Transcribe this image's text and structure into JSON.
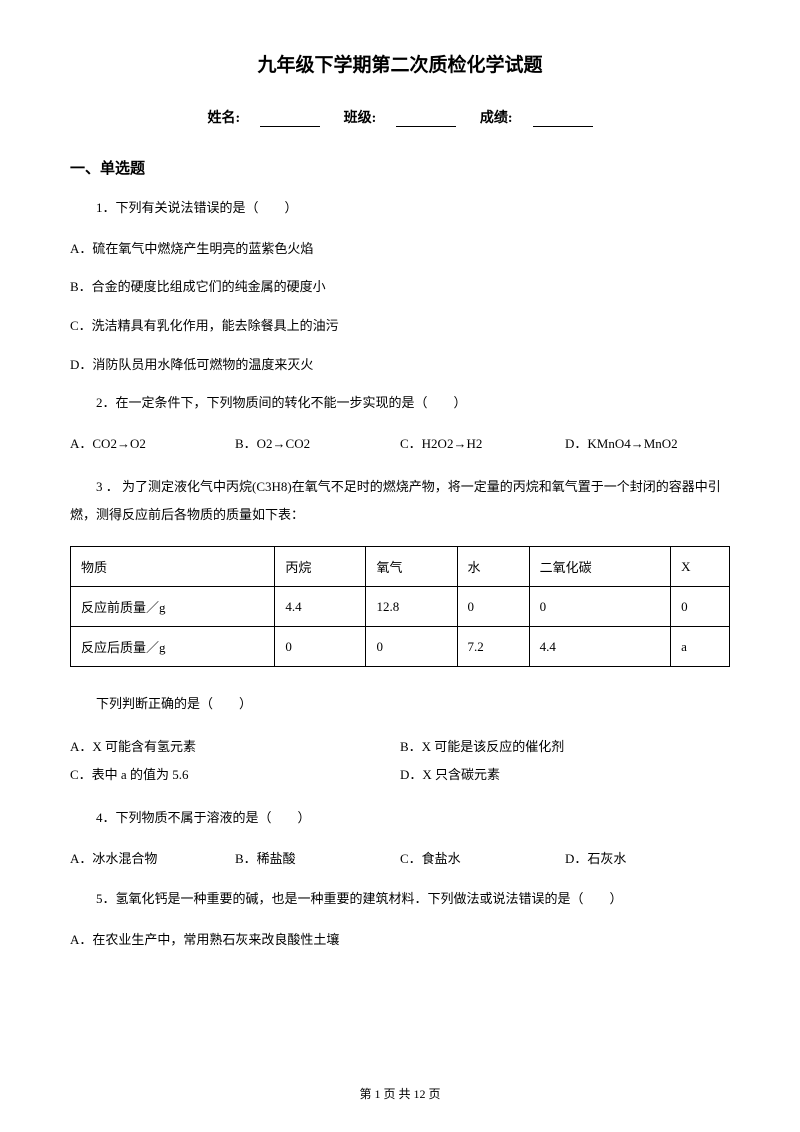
{
  "title": "九年级下学期第二次质检化学试题",
  "info": {
    "name_label": "姓名:",
    "class_label": "班级:",
    "score_label": "成绩:"
  },
  "section1": {
    "header": "一、单选题",
    "q1": {
      "text": "1．下列有关说法错误的是（　　）",
      "a": "A．硫在氧气中燃烧产生明亮的蓝紫色火焰",
      "b": "B．合金的硬度比组成它们的纯金属的硬度小",
      "c": "C．洗洁精具有乳化作用，能去除餐具上的油污",
      "d": "D．消防队员用水降低可燃物的温度来灭火"
    },
    "q2": {
      "text": "2．在一定条件下，下列物质间的转化不能一步实现的是（　　）",
      "a": "A．CO2→O2",
      "b": "B．O2→CO2",
      "c": "C．H2O2→H2",
      "d": "D．KMnO4→MnO2"
    },
    "q3": {
      "text": "3 ． 为了测定液化气中丙烷(C3H8)在氧气不足时的燃烧产物，将一定量的丙烷和氧气置于一个封闭的容器中引燃，测得反应前后各物质的质量如下表：",
      "table": {
        "headers": [
          "物质",
          "丙烷",
          "氧气",
          "水",
          "二氧化碳",
          "X"
        ],
        "row1": [
          "反应前质量／g",
          "4.4",
          "12.8",
          "0",
          "0",
          "0"
        ],
        "row2": [
          "反应后质量／g",
          "0",
          "0",
          "7.2",
          "4.4",
          "a"
        ]
      },
      "subtext": "下列判断正确的是（　　）",
      "a": "A．X 可能含有氢元素",
      "b": "B．X 可能是该反应的催化剂",
      "c": "C．表中 a 的值为 5.6",
      "d": "D．X 只含碳元素"
    },
    "q4": {
      "text": "4．下列物质不属于溶液的是（　　）",
      "a": "A．冰水混合物",
      "b": "B．稀盐酸",
      "c": "C．食盐水",
      "d": "D．石灰水"
    },
    "q5": {
      "text": "5．氢氧化钙是一种重要的碱，也是一种重要的建筑材料．下列做法或说法错误的是（　　）",
      "a": "A．在农业生产中，常用熟石灰来改良酸性土壤"
    }
  },
  "footer": "第 1 页 共 12 页"
}
